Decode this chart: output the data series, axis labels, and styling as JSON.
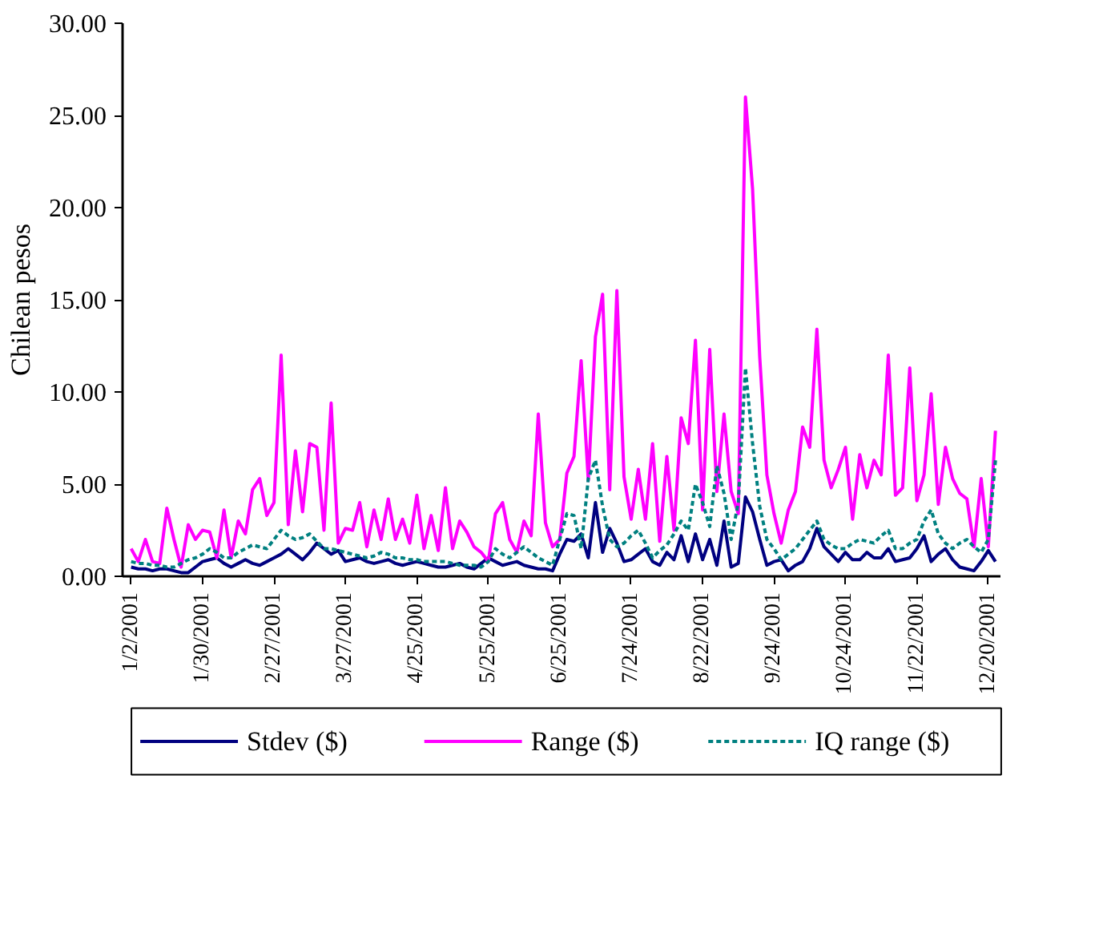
{
  "chart_data": {
    "type": "line",
    "ylabel": "Chilean pesos",
    "categories": [
      "1/2/2001",
      null,
      null,
      null,
      null,
      null,
      null,
      null,
      null,
      null,
      "1/30/2001",
      null,
      null,
      null,
      null,
      null,
      null,
      null,
      null,
      null,
      "2/27/2001",
      null,
      null,
      null,
      null,
      null,
      null,
      null,
      null,
      null,
      "3/27/2001",
      null,
      null,
      null,
      null,
      null,
      null,
      null,
      null,
      null,
      "4/25/2001",
      null,
      null,
      null,
      null,
      null,
      null,
      null,
      null,
      null,
      "5/25/2001",
      null,
      null,
      null,
      null,
      null,
      null,
      null,
      null,
      null,
      "6/25/2001",
      null,
      null,
      null,
      null,
      null,
      null,
      null,
      null,
      null,
      "7/24/2001",
      null,
      null,
      null,
      null,
      null,
      null,
      null,
      null,
      null,
      "8/22/2001",
      null,
      null,
      null,
      null,
      null,
      null,
      null,
      null,
      null,
      "9/24/2001",
      null,
      null,
      null,
      null,
      null,
      null,
      null,
      null,
      null,
      "10/24/2001",
      null,
      null,
      null,
      null,
      null,
      null,
      null,
      null,
      null,
      "11/22/2001",
      null,
      null,
      null,
      null,
      null,
      null,
      null,
      null,
      null,
      "12/20/2001",
      null
    ],
    "ylim": [
      0,
      30
    ],
    "yticks": [
      {
        "value": 0,
        "label": "0.00"
      },
      {
        "value": 5,
        "label": "5.00"
      },
      {
        "value": 10,
        "label": "10.00"
      },
      {
        "value": 15,
        "label": "15.00"
      },
      {
        "value": 20,
        "label": "20.00"
      },
      {
        "value": 25,
        "label": "25.00"
      },
      {
        "value": 30,
        "label": "30.00"
      }
    ],
    "grid": false,
    "legend": "bottom",
    "marker": "none",
    "series": [
      {
        "name": "Stdev ($)",
        "color": "#000080",
        "line_style": "solid",
        "values": [
          0.5,
          0.4,
          0.4,
          0.3,
          0.4,
          0.4,
          0.3,
          0.2,
          0.2,
          0.5,
          0.8,
          0.9,
          1.0,
          0.7,
          0.5,
          0.7,
          0.9,
          0.7,
          0.6,
          0.8,
          1.0,
          1.2,
          1.5,
          1.2,
          0.9,
          1.3,
          1.8,
          1.5,
          1.2,
          1.4,
          0.8,
          0.9,
          1.0,
          0.8,
          0.7,
          0.8,
          0.9,
          0.7,
          0.6,
          0.7,
          0.8,
          0.7,
          0.6,
          0.5,
          0.5,
          0.6,
          0.7,
          0.5,
          0.4,
          0.7,
          1.0,
          0.8,
          0.6,
          0.7,
          0.8,
          0.6,
          0.5,
          0.4,
          0.4,
          0.3,
          1.2,
          2.0,
          1.9,
          2.3,
          1.0,
          4.0,
          1.3,
          2.6,
          1.8,
          0.8,
          0.9,
          1.2,
          1.5,
          0.8,
          0.6,
          1.3,
          0.9,
          2.2,
          0.8,
          2.3,
          0.9,
          2.0,
          0.6,
          3.0,
          0.5,
          0.7,
          4.3,
          3.5,
          2.0,
          0.6,
          0.8,
          0.9,
          0.3,
          0.6,
          0.8,
          1.5,
          2.6,
          1.6,
          1.2,
          0.8,
          1.3,
          0.9,
          0.9,
          1.3,
          1.0,
          1.0,
          1.5,
          0.8,
          0.9,
          1.0,
          1.5,
          2.2,
          0.8,
          1.2,
          1.5,
          0.9,
          0.5,
          0.4,
          0.3,
          0.8,
          1.4,
          0.8
        ]
      },
      {
        "name": "Range ($)",
        "color": "#ff00ff",
        "line_style": "solid",
        "values": [
          1.5,
          0.8,
          2.0,
          0.8,
          0.7,
          3.7,
          2.0,
          0.5,
          2.8,
          2.0,
          2.5,
          2.4,
          1.0,
          3.6,
          1.0,
          3.0,
          2.3,
          4.7,
          5.3,
          3.3,
          4.0,
          12.0,
          2.8,
          6.8,
          3.5,
          7.2,
          7.0,
          2.5,
          9.4,
          1.8,
          2.6,
          2.5,
          4.0,
          1.6,
          3.6,
          2.0,
          4.2,
          2.0,
          3.1,
          1.8,
          4.4,
          1.5,
          3.3,
          1.4,
          4.8,
          1.5,
          3.0,
          2.4,
          1.6,
          1.3,
          0.8,
          3.4,
          4.0,
          2.0,
          1.3,
          3.0,
          2.2,
          8.8,
          2.9,
          1.6,
          2.0,
          5.6,
          6.5,
          11.7,
          5.2,
          13.0,
          15.3,
          4.7,
          15.5,
          5.4,
          3.1,
          5.8,
          3.1,
          7.2,
          1.9,
          6.5,
          2.5,
          8.6,
          7.2,
          12.8,
          3.6,
          12.3,
          4.6,
          8.8,
          4.6,
          3.4,
          26.0,
          21.0,
          11.9,
          5.5,
          3.4,
          1.8,
          3.6,
          4.6,
          8.1,
          7.0,
          13.4,
          6.3,
          4.8,
          5.8,
          7.0,
          3.1,
          6.6,
          4.8,
          6.3,
          5.5,
          12.0,
          4.4,
          4.8,
          11.3,
          4.1,
          5.5,
          9.9,
          3.9,
          7.0,
          5.3,
          4.5,
          4.2,
          1.6,
          5.3,
          1.6,
          7.9
        ]
      },
      {
        "name": "IQ range ($)",
        "color": "#008080",
        "line_style": "dashed",
        "values": [
          0.8,
          0.7,
          0.7,
          0.6,
          0.6,
          0.5,
          0.5,
          0.7,
          0.9,
          1.0,
          1.2,
          1.5,
          1.3,
          1.0,
          1.0,
          1.3,
          1.5,
          1.7,
          1.6,
          1.5,
          2.0,
          2.5,
          2.2,
          2.0,
          2.1,
          2.3,
          1.9,
          1.5,
          1.5,
          1.4,
          1.3,
          1.2,
          1.1,
          1.0,
          1.1,
          1.3,
          1.2,
          1.0,
          1.0,
          0.9,
          0.9,
          0.8,
          0.8,
          0.8,
          0.8,
          0.7,
          0.6,
          0.6,
          0.6,
          0.5,
          0.8,
          1.5,
          1.2,
          1.0,
          1.3,
          1.6,
          1.3,
          1.0,
          0.8,
          0.6,
          2.0,
          3.4,
          3.3,
          1.5,
          5.3,
          6.3,
          3.8,
          2.0,
          1.6,
          1.8,
          2.2,
          2.5,
          1.8,
          1.0,
          1.4,
          1.7,
          2.3,
          3.0,
          2.5,
          5.0,
          4.0,
          2.7,
          6.0,
          4.5,
          2.0,
          4.0,
          11.3,
          7.2,
          3.8,
          2.0,
          1.5,
          0.9,
          1.2,
          1.5,
          2.0,
          2.5,
          3.0,
          2.0,
          1.7,
          1.5,
          1.5,
          1.8,
          2.0,
          1.9,
          1.8,
          2.2,
          2.5,
          1.5,
          1.5,
          1.8,
          2.0,
          3.0,
          3.6,
          2.3,
          1.8,
          1.5,
          1.8,
          2.0,
          1.6,
          1.3,
          2.0,
          6.3
        ]
      }
    ]
  }
}
